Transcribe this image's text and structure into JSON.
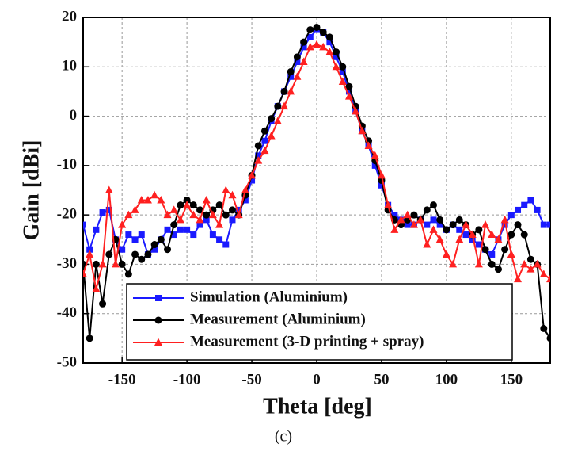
{
  "chart_data": {
    "type": "line",
    "caption": "(c)",
    "x_label": "Theta [deg]",
    "y_label": "Gain [dBi]",
    "xlim": [
      -180,
      180
    ],
    "ylim": [
      -50,
      20
    ],
    "xticks": [
      -150,
      -100,
      -50,
      0,
      50,
      100,
      150
    ],
    "yticks": [
      20,
      10,
      0,
      -10,
      -20,
      -30,
      -40,
      -50
    ],
    "grid": true,
    "legend": "lower center",
    "x": [
      -180,
      -175,
      -170,
      -165,
      -160,
      -155,
      -150,
      -145,
      -140,
      -135,
      -130,
      -125,
      -120,
      -115,
      -110,
      -105,
      -100,
      -95,
      -90,
      -85,
      -80,
      -75,
      -70,
      -65,
      -60,
      -55,
      -50,
      -45,
      -40,
      -35,
      -30,
      -25,
      -20,
      -15,
      -10,
      -5,
      0,
      5,
      10,
      15,
      20,
      25,
      30,
      35,
      40,
      45,
      50,
      55,
      60,
      65,
      70,
      75,
      80,
      85,
      90,
      95,
      100,
      105,
      110,
      115,
      120,
      125,
      130,
      135,
      140,
      145,
      150,
      155,
      160,
      165,
      170,
      175,
      180
    ],
    "series": [
      {
        "name": "Simulation (Aluminium)",
        "color": "#1a1aff",
        "marker": "square",
        "values": [
          -22,
          -27,
          -23,
          -19.5,
          -19,
          -25,
          -27,
          -24,
          -25,
          -24,
          -28,
          -27,
          -25,
          -23,
          -24,
          -23,
          -23,
          -24,
          -22,
          -21,
          -24,
          -25,
          -26,
          -21,
          -19,
          -17,
          -13,
          -8,
          -5,
          -1,
          2,
          5,
          8,
          11,
          14,
          16,
          17.5,
          17,
          15,
          12,
          9,
          5,
          1,
          -3,
          -6,
          -10,
          -14,
          -18,
          -20,
          -21,
          -22,
          -22,
          -21,
          -22,
          -21,
          -22,
          -23,
          -22,
          -23,
          -24,
          -25,
          -26,
          -27,
          -28,
          -25,
          -22,
          -20,
          -19,
          -18,
          -17,
          -19,
          -22,
          -22
        ]
      },
      {
        "name": "Measurement (Aluminium)",
        "color": "#000000",
        "marker": "circle",
        "values": [
          -30,
          -45,
          -30,
          -38,
          -28,
          -25,
          -30,
          -32,
          -28,
          -29,
          -28,
          -26,
          -25,
          -27,
          -22,
          -18,
          -17,
          -18,
          -19,
          -20,
          -19,
          -18,
          -20,
          -19,
          -20,
          -16,
          -12,
          -6,
          -3,
          -0.5,
          2,
          5,
          9,
          12,
          15,
          17.5,
          18,
          17,
          16,
          13,
          10,
          6,
          2,
          -2,
          -5,
          -9,
          -13,
          -19,
          -21,
          -22,
          -21,
          -20,
          -21,
          -19,
          -18,
          -21,
          -23,
          -22,
          -21,
          -22,
          -24,
          -23,
          -27,
          -30,
          -31,
          -27,
          -24,
          -22,
          -24,
          -29,
          -30,
          -43,
          -45
        ]
      },
      {
        "name": "Measurement (3-D printing + spray)",
        "color": "#ff2020",
        "marker": "triangle",
        "values": [
          -32,
          -28,
          -35,
          -30,
          -15,
          -30,
          -22,
          -20,
          -19,
          -17,
          -17,
          -16,
          -17,
          -20,
          -19,
          -21,
          -18,
          -20,
          -21,
          -17,
          -20,
          -22,
          -15,
          -16,
          -20,
          -15,
          -12,
          -9,
          -7,
          -4,
          -1,
          2,
          5,
          8,
          11,
          14,
          14.5,
          14,
          13,
          10,
          7,
          4,
          1,
          -3,
          -6,
          -8,
          -12,
          -18,
          -23,
          -21,
          -20,
          -22,
          -21,
          -26,
          -23,
          -25,
          -28,
          -30,
          -25,
          -22,
          -24,
          -30,
          -22,
          -24,
          -25,
          -21,
          -28,
          -33,
          -30,
          -31,
          -30,
          -32,
          -33
        ]
      }
    ]
  }
}
